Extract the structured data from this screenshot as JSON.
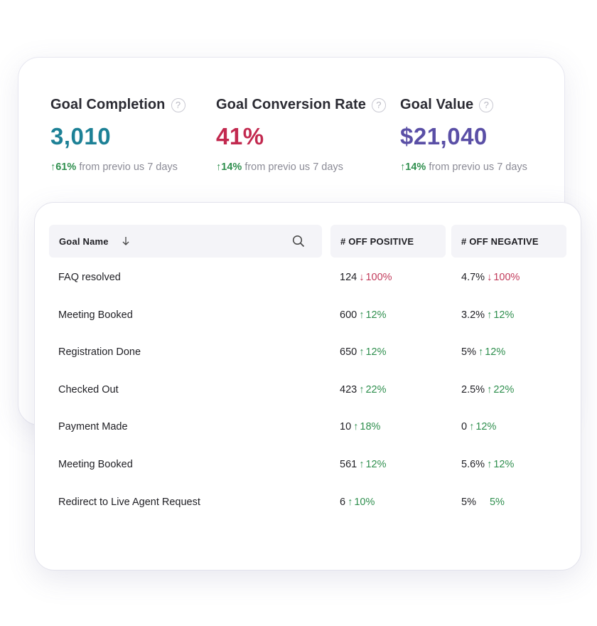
{
  "metrics": [
    {
      "title": "Goal Completion",
      "value": "3,010",
      "value_color": "#1d8196",
      "change_pct": "61%",
      "change_text": "from previo us 7 days"
    },
    {
      "title": "Goal Conversion Rate",
      "value": "41%",
      "value_color": "#c2294f",
      "change_pct": "14%",
      "change_text": "from previo us 7 days"
    },
    {
      "title": "Goal Value",
      "value": "$21,040",
      "value_color": "#5a4fa6",
      "change_pct": "14%",
      "change_text": "from previo us 7 days"
    }
  ],
  "table": {
    "headers": {
      "name": "Goal Name",
      "positive": "# OFF POSITIVE",
      "negative": "# OFF NEGATIVE"
    },
    "rows": [
      {
        "name": "FAQ resolved",
        "pos_value": "124",
        "pos_arrow": "↓",
        "pos_change": "100%",
        "pos_dir": "down",
        "neg_value": "4.7%",
        "neg_arrow": "↓",
        "neg_change": "100%",
        "neg_dir": "down"
      },
      {
        "name": "Meeting Booked",
        "pos_value": "600",
        "pos_arrow": "↑",
        "pos_change": "12%",
        "pos_dir": "up",
        "neg_value": "3.2%",
        "neg_arrow": "↑",
        "neg_change": "12%",
        "neg_dir": "up"
      },
      {
        "name": "Registration Done",
        "pos_value": "650",
        "pos_arrow": "↑",
        "pos_change": "12%",
        "pos_dir": "up",
        "neg_value": "5%",
        "neg_arrow": "↑",
        "neg_change": "12%",
        "neg_dir": "up"
      },
      {
        "name": "Checked Out",
        "pos_value": "423",
        "pos_arrow": "↑",
        "pos_change": "22%",
        "pos_dir": "up",
        "neg_value": "2.5%",
        "neg_arrow": "↑",
        "neg_change": "22%",
        "neg_dir": "up"
      },
      {
        "name": "Payment Made",
        "pos_value": "10",
        "pos_arrow": "↑",
        "pos_change": "18%",
        "pos_dir": "up",
        "neg_value": "0",
        "neg_arrow": "↑",
        "neg_change": "12%",
        "neg_dir": "up"
      },
      {
        "name": "Meeting Booked",
        "pos_value": "561",
        "pos_arrow": "↑",
        "pos_change": "12%",
        "pos_dir": "up",
        "neg_value": "5.6%",
        "neg_arrow": "↑",
        "neg_change": "12%",
        "neg_dir": "up"
      },
      {
        "name": "Redirect to Live Agent Request",
        "pos_value": "6",
        "pos_arrow": "↑",
        "pos_change": "10%",
        "pos_dir": "up",
        "neg_value": "5%",
        "neg_arrow": "",
        "neg_change": "5%",
        "neg_dir": "up"
      }
    ]
  },
  "colors": {
    "positive": "#2f8f4e",
    "negative": "#c23b5b"
  },
  "icons": {
    "help": "question-circle-icon",
    "sort": "arrow-down-icon",
    "search": "search-icon",
    "change_up": "arrow-up-icon"
  }
}
